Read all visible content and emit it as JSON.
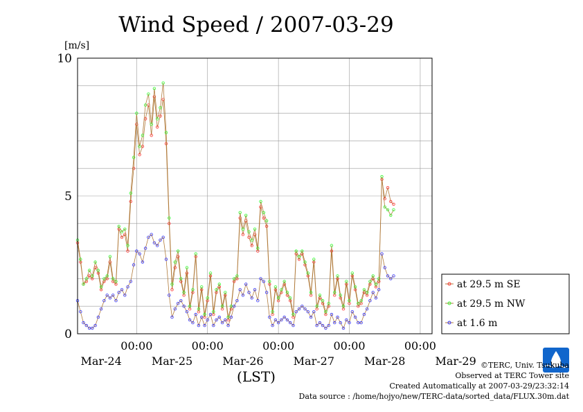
{
  "chart_data": {
    "type": "line",
    "title": "Wind Speed / 2007-03-29",
    "ylabel": "[m/s]",
    "xlabel": "(LST)",
    "ylim": [
      0,
      10
    ],
    "y_ticks": [
      "0",
      "5",
      "10"
    ],
    "x_tick_times": [
      "00:00",
      "00:00",
      "00:00",
      "00:00",
      "00:00"
    ],
    "x_tick_dates": [
      "Mar-24",
      "Mar-25",
      "Mar-26",
      "Mar-27",
      "Mar-28",
      "Mar-29"
    ],
    "xlim_hours": [
      -20,
      100
    ],
    "grid": true,
    "legend_position": "right",
    "series": [
      {
        "name": "at 29.5 m SE",
        "color": "#ff3333",
        "points": [
          [
            -20,
            3.3
          ],
          [
            -19,
            2.6
          ],
          [
            -18,
            1.8
          ],
          [
            -17,
            1.9
          ],
          [
            -16,
            2.1
          ],
          [
            -15,
            2.0
          ],
          [
            -14,
            2.4
          ],
          [
            -13,
            2.2
          ],
          [
            -12,
            1.6
          ],
          [
            -11,
            1.9
          ],
          [
            -10,
            2.0
          ],
          [
            -9,
            2.6
          ],
          [
            -8,
            1.9
          ],
          [
            -7,
            1.8
          ],
          [
            -6,
            3.8
          ],
          [
            -5,
            3.5
          ],
          [
            -4,
            3.6
          ],
          [
            -3,
            3.0
          ],
          [
            -2,
            4.8
          ],
          [
            -1,
            6.0
          ],
          [
            0,
            7.6
          ],
          [
            1,
            6.5
          ],
          [
            2,
            6.8
          ],
          [
            3,
            7.8
          ],
          [
            4,
            8.3
          ],
          [
            5,
            7.2
          ],
          [
            6,
            8.6
          ],
          [
            7,
            7.5
          ],
          [
            8,
            7.9
          ],
          [
            9,
            8.5
          ],
          [
            10,
            6.9
          ],
          [
            11,
            4.0
          ],
          [
            12,
            1.6
          ],
          [
            13,
            2.4
          ],
          [
            14,
            2.8
          ],
          [
            15,
            1.9
          ],
          [
            16,
            1.4
          ],
          [
            17,
            2.2
          ],
          [
            18,
            0.9
          ],
          [
            19,
            1.5
          ],
          [
            20,
            2.8
          ],
          [
            21,
            0.8
          ],
          [
            22,
            1.6
          ],
          [
            23,
            0.6
          ],
          [
            24,
            1.2
          ],
          [
            25,
            2.1
          ],
          [
            26,
            0.7
          ],
          [
            27,
            1.5
          ],
          [
            28,
            1.7
          ],
          [
            29,
            0.9
          ],
          [
            30,
            1.4
          ],
          [
            31,
            0.5
          ],
          [
            32,
            0.9
          ],
          [
            33,
            1.9
          ],
          [
            34,
            2.0
          ],
          [
            35,
            4.2
          ],
          [
            36,
            3.6
          ],
          [
            37,
            4.1
          ],
          [
            38,
            3.5
          ],
          [
            39,
            3.2
          ],
          [
            40,
            3.6
          ],
          [
            41,
            3.0
          ],
          [
            42,
            4.6
          ],
          [
            43,
            4.2
          ],
          [
            44,
            3.9
          ],
          [
            45,
            1.8
          ],
          [
            46,
            0.7
          ],
          [
            47,
            1.6
          ],
          [
            48,
            1.2
          ],
          [
            49,
            1.5
          ],
          [
            50,
            1.8
          ],
          [
            51,
            1.4
          ],
          [
            52,
            1.2
          ],
          [
            53,
            0.6
          ],
          [
            54,
            2.9
          ],
          [
            55,
            2.7
          ],
          [
            56,
            2.9
          ],
          [
            57,
            2.5
          ],
          [
            58,
            2.1
          ],
          [
            59,
            1.4
          ],
          [
            60,
            2.6
          ],
          [
            61,
            0.9
          ],
          [
            62,
            1.3
          ],
          [
            63,
            1.1
          ],
          [
            64,
            0.7
          ],
          [
            65,
            1.0
          ],
          [
            66,
            3.0
          ],
          [
            67,
            1.4
          ],
          [
            68,
            2.0
          ],
          [
            69,
            1.3
          ],
          [
            70,
            0.9
          ],
          [
            71,
            1.8
          ],
          [
            72,
            1.1
          ],
          [
            73,
            2.1
          ],
          [
            74,
            1.6
          ],
          [
            75,
            1.0
          ],
          [
            76,
            1.1
          ],
          [
            77,
            1.5
          ],
          [
            78,
            1.4
          ],
          [
            79,
            1.8
          ],
          [
            80,
            2.0
          ],
          [
            81,
            1.7
          ],
          [
            82,
            1.9
          ],
          [
            83,
            5.6
          ],
          [
            84,
            4.9
          ],
          [
            85,
            5.3
          ],
          [
            86,
            4.8
          ],
          [
            87,
            4.7
          ]
        ]
      },
      {
        "name": "at 29.5 m NW",
        "color": "#33ff33",
        "points": [
          [
            -20,
            3.4
          ],
          [
            -19,
            2.7
          ],
          [
            -18,
            1.8
          ],
          [
            -17,
            2.0
          ],
          [
            -16,
            2.3
          ],
          [
            -15,
            2.1
          ],
          [
            -14,
            2.6
          ],
          [
            -13,
            2.3
          ],
          [
            -12,
            1.7
          ],
          [
            -11,
            2.0
          ],
          [
            -10,
            2.1
          ],
          [
            -9,
            2.8
          ],
          [
            -8,
            2.0
          ],
          [
            -7,
            1.9
          ],
          [
            -6,
            3.9
          ],
          [
            -5,
            3.7
          ],
          [
            -4,
            3.8
          ],
          [
            -3,
            3.2
          ],
          [
            -2,
            5.1
          ],
          [
            -1,
            6.4
          ],
          [
            0,
            8.0
          ],
          [
            1,
            6.8
          ],
          [
            2,
            7.2
          ],
          [
            3,
            8.3
          ],
          [
            4,
            8.7
          ],
          [
            5,
            7.6
          ],
          [
            6,
            8.9
          ],
          [
            7,
            7.8
          ],
          [
            8,
            8.2
          ],
          [
            9,
            9.1
          ],
          [
            10,
            7.3
          ],
          [
            11,
            4.2
          ],
          [
            12,
            1.8
          ],
          [
            13,
            2.6
          ],
          [
            14,
            3.0
          ],
          [
            15,
            2.0
          ],
          [
            16,
            1.5
          ],
          [
            17,
            2.4
          ],
          [
            18,
            1.0
          ],
          [
            19,
            1.6
          ],
          [
            20,
            2.9
          ],
          [
            21,
            0.9
          ],
          [
            22,
            1.7
          ],
          [
            23,
            0.7
          ],
          [
            24,
            1.3
          ],
          [
            25,
            2.2
          ],
          [
            26,
            0.8
          ],
          [
            27,
            1.6
          ],
          [
            28,
            1.8
          ],
          [
            29,
            1.0
          ],
          [
            30,
            1.5
          ],
          [
            31,
            0.6
          ],
          [
            32,
            1.0
          ],
          [
            33,
            2.0
          ],
          [
            34,
            2.1
          ],
          [
            35,
            4.4
          ],
          [
            36,
            3.8
          ],
          [
            37,
            4.3
          ],
          [
            38,
            3.7
          ],
          [
            39,
            3.4
          ],
          [
            40,
            3.8
          ],
          [
            41,
            3.1
          ],
          [
            42,
            4.8
          ],
          [
            43,
            4.4
          ],
          [
            44,
            4.1
          ],
          [
            45,
            1.9
          ],
          [
            46,
            0.8
          ],
          [
            47,
            1.7
          ],
          [
            48,
            1.3
          ],
          [
            49,
            1.6
          ],
          [
            50,
            1.9
          ],
          [
            51,
            1.5
          ],
          [
            52,
            1.3
          ],
          [
            53,
            0.7
          ],
          [
            54,
            3.0
          ],
          [
            55,
            2.8
          ],
          [
            56,
            3.0
          ],
          [
            57,
            2.6
          ],
          [
            58,
            2.2
          ],
          [
            59,
            1.5
          ],
          [
            60,
            2.7
          ],
          [
            61,
            1.0
          ],
          [
            62,
            1.4
          ],
          [
            63,
            1.2
          ],
          [
            64,
            0.8
          ],
          [
            65,
            1.1
          ],
          [
            66,
            3.2
          ],
          [
            67,
            1.5
          ],
          [
            68,
            2.1
          ],
          [
            69,
            1.4
          ],
          [
            70,
            1.0
          ],
          [
            71,
            1.9
          ],
          [
            72,
            1.2
          ],
          [
            73,
            2.2
          ],
          [
            74,
            1.7
          ],
          [
            75,
            1.1
          ],
          [
            76,
            1.2
          ],
          [
            77,
            1.6
          ],
          [
            78,
            1.5
          ],
          [
            79,
            1.9
          ],
          [
            80,
            2.1
          ],
          [
            81,
            1.8
          ],
          [
            82,
            2.0
          ],
          [
            83,
            5.7
          ],
          [
            84,
            4.6
          ],
          [
            85,
            4.5
          ],
          [
            86,
            4.3
          ],
          [
            87,
            4.5
          ]
        ]
      },
      {
        "name": "at 1.6 m",
        "color": "#3333ff",
        "points": [
          [
            -20,
            1.2
          ],
          [
            -19,
            0.8
          ],
          [
            -18,
            0.4
          ],
          [
            -17,
            0.3
          ],
          [
            -16,
            0.2
          ],
          [
            -15,
            0.2
          ],
          [
            -14,
            0.3
          ],
          [
            -13,
            0.6
          ],
          [
            -12,
            0.9
          ],
          [
            -11,
            1.2
          ],
          [
            -10,
            1.4
          ],
          [
            -9,
            1.3
          ],
          [
            -8,
            1.4
          ],
          [
            -7,
            1.2
          ],
          [
            -6,
            1.5
          ],
          [
            -5,
            1.6
          ],
          [
            -4,
            1.4
          ],
          [
            -3,
            1.7
          ],
          [
            -2,
            1.9
          ],
          [
            -1,
            2.5
          ],
          [
            0,
            3.0
          ],
          [
            1,
            2.9
          ],
          [
            2,
            2.6
          ],
          [
            3,
            3.1
          ],
          [
            4,
            3.5
          ],
          [
            5,
            3.6
          ],
          [
            6,
            3.3
          ],
          [
            7,
            3.2
          ],
          [
            8,
            3.4
          ],
          [
            9,
            3.5
          ],
          [
            10,
            2.7
          ],
          [
            11,
            1.4
          ],
          [
            12,
            0.6
          ],
          [
            13,
            0.9
          ],
          [
            14,
            1.1
          ],
          [
            15,
            1.2
          ],
          [
            16,
            1.0
          ],
          [
            17,
            0.8
          ],
          [
            18,
            0.5
          ],
          [
            19,
            0.4
          ],
          [
            20,
            0.7
          ],
          [
            21,
            0.3
          ],
          [
            22,
            0.6
          ],
          [
            23,
            0.3
          ],
          [
            24,
            0.5
          ],
          [
            25,
            0.7
          ],
          [
            26,
            0.3
          ],
          [
            27,
            0.5
          ],
          [
            28,
            0.6
          ],
          [
            29,
            0.4
          ],
          [
            30,
            0.5
          ],
          [
            31,
            0.3
          ],
          [
            32,
            0.6
          ],
          [
            33,
            1.0
          ],
          [
            34,
            1.2
          ],
          [
            35,
            1.6
          ],
          [
            36,
            1.4
          ],
          [
            37,
            1.8
          ],
          [
            38,
            1.5
          ],
          [
            39,
            1.3
          ],
          [
            40,
            1.6
          ],
          [
            41,
            1.2
          ],
          [
            42,
            2.0
          ],
          [
            43,
            1.9
          ],
          [
            44,
            1.5
          ],
          [
            45,
            0.6
          ],
          [
            46,
            0.3
          ],
          [
            47,
            0.5
          ],
          [
            48,
            0.4
          ],
          [
            49,
            0.5
          ],
          [
            50,
            0.6
          ],
          [
            51,
            0.5
          ],
          [
            52,
            0.4
          ],
          [
            53,
            0.3
          ],
          [
            54,
            0.8
          ],
          [
            55,
            0.9
          ],
          [
            56,
            1.0
          ],
          [
            57,
            0.9
          ],
          [
            58,
            0.8
          ],
          [
            59,
            0.6
          ],
          [
            60,
            0.8
          ],
          [
            61,
            0.3
          ],
          [
            62,
            0.4
          ],
          [
            63,
            0.3
          ],
          [
            64,
            0.2
          ],
          [
            65,
            0.3
          ],
          [
            66,
            0.7
          ],
          [
            67,
            0.4
          ],
          [
            68,
            0.6
          ],
          [
            69,
            0.4
          ],
          [
            70,
            0.2
          ],
          [
            71,
            0.5
          ],
          [
            72,
            0.4
          ],
          [
            73,
            0.8
          ],
          [
            74,
            0.6
          ],
          [
            75,
            0.4
          ],
          [
            76,
            0.4
          ],
          [
            77,
            0.7
          ],
          [
            78,
            0.9
          ],
          [
            79,
            1.2
          ],
          [
            80,
            1.5
          ],
          [
            81,
            1.3
          ],
          [
            82,
            1.6
          ],
          [
            83,
            2.9
          ],
          [
            84,
            2.4
          ],
          [
            85,
            2.1
          ],
          [
            86,
            2.0
          ],
          [
            87,
            2.1
          ]
        ]
      }
    ]
  },
  "credits": {
    "copyright": "©TERC, Univ. Tsukuba",
    "observed": "Observed at TERC Tower site",
    "created": "Created Automatically at 2007-03-29/23:32:14",
    "source": "Data source : /home/hojyo/new/TERC-data/sorted_data/FLUX.30m.dat"
  },
  "logo_label": "TERC",
  "colors": {
    "line": "#b07a3a",
    "grid": "#999999"
  }
}
